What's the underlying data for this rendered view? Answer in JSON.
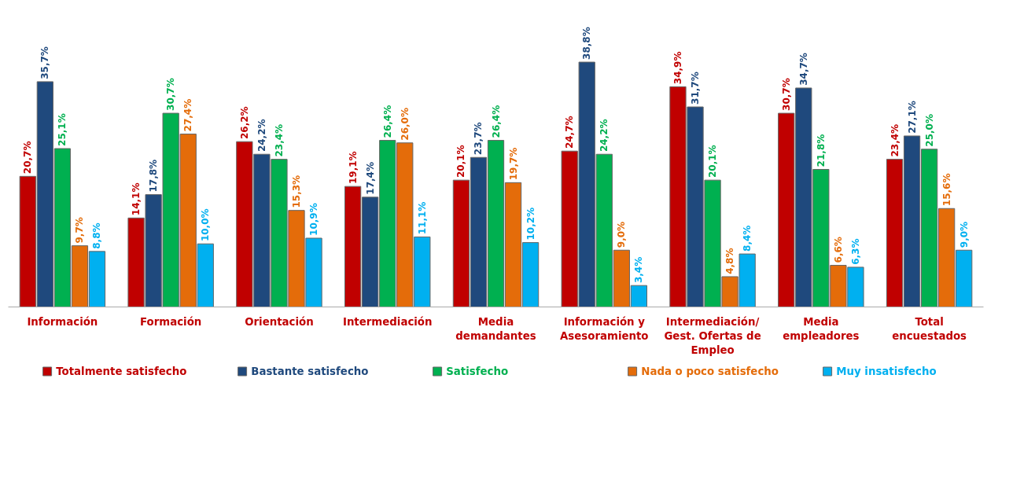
{
  "chart_data": {
    "type": "bar",
    "categories": [
      "Información",
      "Formación",
      "Orientación",
      "Intermediación",
      "Media\ndemandantes",
      "Información y\nAsesoramiento",
      "Intermediación/\nGest. Ofertas de\nEmpleo",
      "Media\nempleadores",
      "Total\nencuestados"
    ],
    "series": [
      {
        "name": "Totalmente satisfecho",
        "color": "#c00000",
        "values": [
          20.7,
          14.1,
          26.2,
          19.1,
          20.1,
          24.7,
          34.9,
          30.7,
          23.4
        ],
        "value_labels": [
          "20,7%",
          "14,1%",
          "26,2%",
          "19,1%",
          "20,1%",
          "24,7%",
          "34,9%",
          "30,7%",
          "23,4%"
        ]
      },
      {
        "name": "Bastante satisfecho",
        "color": "#1f497d",
        "values": [
          35.7,
          17.8,
          24.2,
          17.4,
          23.7,
          38.8,
          31.7,
          34.7,
          27.1
        ],
        "value_labels": [
          "35,7%",
          "17,8%",
          "24,2%",
          "17,4%",
          "23,7%",
          "38,8%",
          "31,7%",
          "34,7%",
          "27,1%"
        ]
      },
      {
        "name": "Satisfecho",
        "color": "#00b050",
        "values": [
          25.1,
          30.7,
          23.4,
          26.4,
          26.4,
          24.2,
          20.1,
          21.8,
          25.0
        ],
        "value_labels": [
          "25,1%",
          "30,7%",
          "23,4%",
          "26,4%",
          "26,4%",
          "24,2%",
          "20,1%",
          "21,8%",
          "25,0%"
        ]
      },
      {
        "name": "Nada o poco satisfecho",
        "color": "#e46c0a",
        "values": [
          9.7,
          27.4,
          15.3,
          26.0,
          19.7,
          9.0,
          4.8,
          6.6,
          15.6
        ],
        "value_labels": [
          "9,7%",
          "27,4%",
          "15,3%",
          "26,0%",
          "19,7%",
          "9,0%",
          "4,8%",
          "6,6%",
          "15,6%"
        ]
      },
      {
        "name": "Muy insatisfecho",
        "color": "#00b0f0",
        "values": [
          8.8,
          10.0,
          10.9,
          11.1,
          10.2,
          3.4,
          8.4,
          6.3,
          9.0
        ],
        "value_labels": [
          "8,8%",
          "10,0%",
          "10,9%",
          "11,1%",
          "10,2%",
          "3,4%",
          "8,4%",
          "6,3%",
          "9,0%"
        ]
      }
    ],
    "legend": "bottom",
    "tick_labels": "x",
    "grid": false
  }
}
